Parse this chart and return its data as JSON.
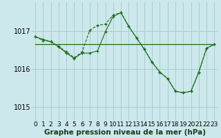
{
  "title": "Graphe pression niveau de la mer (hPa)",
  "background_color": "#cce8ec",
  "grid_color": "#aacccc",
  "line_color": "#1a6b1a",
  "marker_color": "#1a6b1a",
  "xlim": [
    -0.5,
    23.5
  ],
  "ylim": [
    1014.65,
    1017.75
  ],
  "yticks": [
    1015,
    1016,
    1017
  ],
  "xticks": [
    0,
    1,
    2,
    3,
    4,
    5,
    6,
    7,
    8,
    9,
    10,
    11,
    12,
    13,
    14,
    15,
    16,
    17,
    18,
    19,
    20,
    21,
    22,
    23
  ],
  "series1_x": [
    0,
    1,
    2,
    3,
    4,
    5,
    6,
    7,
    8,
    9,
    10,
    11,
    12,
    13,
    14,
    15,
    16,
    17,
    18,
    19,
    20,
    21,
    22,
    23
  ],
  "series1_y": [
    1016.85,
    1016.75,
    1016.72,
    1016.6,
    1016.45,
    1016.3,
    1016.45,
    1017.02,
    1017.15,
    1017.18,
    1017.42,
    1017.48,
    1017.12,
    1016.82,
    1016.52,
    1016.18,
    1015.92,
    1015.75,
    1015.42,
    1015.38,
    1015.42,
    1015.92,
    1016.55,
    1016.65
  ],
  "series2_x": [
    0,
    1,
    2,
    3,
    4,
    5,
    6,
    7,
    8,
    9,
    10,
    11,
    12,
    13,
    14,
    15,
    16,
    17,
    18,
    19,
    20,
    21,
    22,
    23
  ],
  "series2_y": [
    1016.85,
    1016.78,
    1016.72,
    1016.58,
    1016.42,
    1016.28,
    1016.42,
    1016.42,
    1016.48,
    1016.98,
    1017.38,
    1017.48,
    1017.12,
    1016.82,
    1016.52,
    1016.18,
    1015.92,
    1015.75,
    1015.42,
    1015.38,
    1015.42,
    1015.92,
    1016.55,
    1016.65
  ],
  "series3_x": [
    0,
    23
  ],
  "series3_y": [
    1016.65,
    1016.65
  ],
  "tick_fontsize": 6.5,
  "title_fontsize": 7.5,
  "title_fontweight": "bold"
}
